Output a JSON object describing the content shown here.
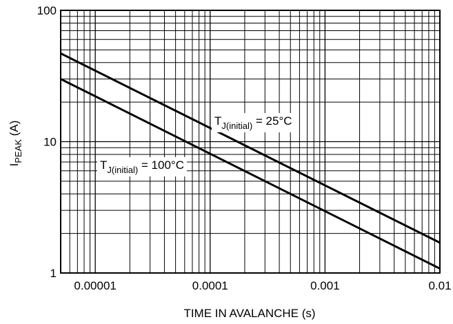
{
  "chart_data": {
    "type": "line",
    "xscale": "log",
    "yscale": "log",
    "xlim": [
      5e-06,
      0.01
    ],
    "ylim": [
      1,
      100
    ],
    "grid": true,
    "xlabel": "TIME IN AVALANCHE (s)",
    "ylabel": {
      "main": "I",
      "sub": "PEAK",
      "rest": " (A)"
    },
    "x_ticks": [
      {
        "value": 1e-05,
        "label": "0.00001"
      },
      {
        "value": 0.0001,
        "label": "0.0001"
      },
      {
        "value": 0.001,
        "label": "0.001"
      },
      {
        "value": 0.01,
        "label": "0.01"
      }
    ],
    "y_ticks": [
      {
        "value": 1,
        "label": "1"
      },
      {
        "value": 10,
        "label": "10"
      },
      {
        "value": 100,
        "label": "100"
      }
    ],
    "series": [
      {
        "annotation": {
          "main": "T",
          "sub": "J(initial)",
          "rest": " = 25°C"
        },
        "color": "#000000",
        "x": [
          5e-06,
          0.01
        ],
        "y": [
          47,
          1.7
        ]
      },
      {
        "annotation": {
          "main": "T",
          "sub": "J(initial)",
          "rest": " = 100°C"
        },
        "color": "#000000",
        "x": [
          5e-06,
          0.01
        ],
        "y": [
          30,
          1.08
        ]
      }
    ]
  }
}
